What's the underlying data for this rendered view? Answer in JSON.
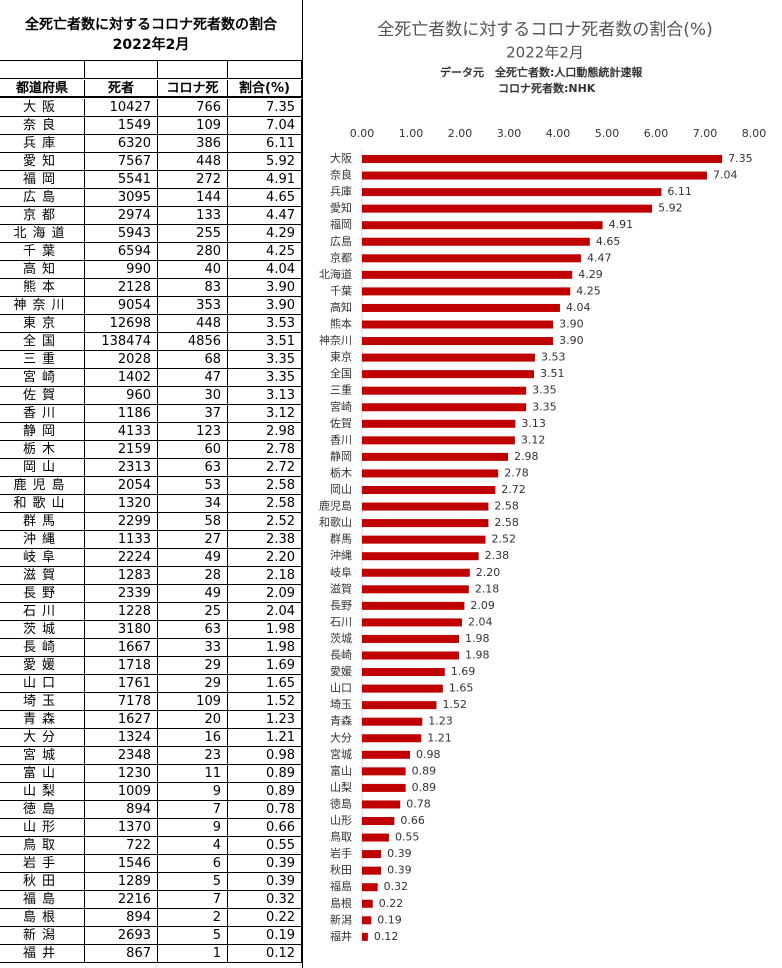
{
  "table": {
    "title": "全死亡者数に対するコロナ死者数の割合",
    "subtitle": "2022年2月",
    "header": [
      "都道府県",
      "死者",
      "コロナ死",
      "割合(%)"
    ],
    "rows": [
      [
        "大阪",
        "10427",
        "766",
        "7.35"
      ],
      [
        "奈良",
        "1549",
        "109",
        "7.04"
      ],
      [
        "兵庫",
        "6320",
        "386",
        "6.11"
      ],
      [
        "愛知",
        "7567",
        "448",
        "5.92"
      ],
      [
        "福岡",
        "5541",
        "272",
        "4.91"
      ],
      [
        "広島",
        "3095",
        "144",
        "4.65"
      ],
      [
        "京都",
        "2974",
        "133",
        "4.47"
      ],
      [
        "北海道",
        "5943",
        "255",
        "4.29"
      ],
      [
        "千葉",
        "6594",
        "280",
        "4.25"
      ],
      [
        "高知",
        "990",
        "40",
        "4.04"
      ],
      [
        "熊本",
        "2128",
        "83",
        "3.90"
      ],
      [
        "神奈川",
        "9054",
        "353",
        "3.90"
      ],
      [
        "東京",
        "12698",
        "448",
        "3.53"
      ],
      [
        "全国",
        "138474",
        "4856",
        "3.51"
      ],
      [
        "三重",
        "2028",
        "68",
        "3.35"
      ],
      [
        "宮崎",
        "1402",
        "47",
        "3.35"
      ],
      [
        "佐賀",
        "960",
        "30",
        "3.13"
      ],
      [
        "香川",
        "1186",
        "37",
        "3.12"
      ],
      [
        "静岡",
        "4133",
        "123",
        "2.98"
      ],
      [
        "栃木",
        "2159",
        "60",
        "2.78"
      ],
      [
        "岡山",
        "2313",
        "63",
        "2.72"
      ],
      [
        "鹿児島",
        "2054",
        "53",
        "2.58"
      ],
      [
        "和歌山",
        "1320",
        "34",
        "2.58"
      ],
      [
        "群馬",
        "2299",
        "58",
        "2.52"
      ],
      [
        "沖縄",
        "1133",
        "27",
        "2.38"
      ],
      [
        "岐阜",
        "2224",
        "49",
        "2.20"
      ],
      [
        "滋賀",
        "1283",
        "28",
        "2.18"
      ],
      [
        "長野",
        "2339",
        "49",
        "2.09"
      ],
      [
        "石川",
        "1228",
        "25",
        "2.04"
      ],
      [
        "茨城",
        "3180",
        "63",
        "1.98"
      ],
      [
        "長崎",
        "1667",
        "33",
        "1.98"
      ],
      [
        "愛媛",
        "1718",
        "29",
        "1.69"
      ],
      [
        "山口",
        "1761",
        "29",
        "1.65"
      ],
      [
        "埼玉",
        "7178",
        "109",
        "1.52"
      ],
      [
        "青森",
        "1627",
        "20",
        "1.23"
      ],
      [
        "大分",
        "1324",
        "16",
        "1.21"
      ],
      [
        "宮城",
        "2348",
        "23",
        "0.98"
      ],
      [
        "富山",
        "1230",
        "11",
        "0.89"
      ],
      [
        "山梨",
        "1009",
        "9",
        "0.89"
      ],
      [
        "徳島",
        "894",
        "7",
        "0.78"
      ],
      [
        "山形",
        "1370",
        "9",
        "0.66"
      ],
      [
        "鳥取",
        "722",
        "4",
        "0.55"
      ],
      [
        "岩手",
        "1546",
        "6",
        "0.39"
      ],
      [
        "秋田",
        "1289",
        "5",
        "0.39"
      ],
      [
        "福島",
        "2216",
        "7",
        "0.32"
      ],
      [
        "島根",
        "894",
        "2",
        "0.22"
      ],
      [
        "新潟",
        "2693",
        "5",
        "0.19"
      ],
      [
        "福井",
        "867",
        "1",
        "0.12"
      ]
    ]
  },
  "chart_data": {
    "type": "barh",
    "title": "全死亡者数に対するコロナ死者数の割合(%)",
    "subtitle": "2022年2月",
    "source": [
      "データ元　全死亡者数:人口動態統計速報",
      "コロナ死者数:NHK"
    ],
    "categories": [
      "大阪",
      "奈良",
      "兵庫",
      "愛知",
      "福岡",
      "広島",
      "京都",
      "北海道",
      "千葉",
      "高知",
      "熊本",
      "神奈川",
      "東京",
      "全国",
      "三重",
      "宮崎",
      "佐賀",
      "香川",
      "静岡",
      "栃木",
      "岡山",
      "鹿児島",
      "和歌山",
      "群馬",
      "沖縄",
      "岐阜",
      "滋賀",
      "長野",
      "石川",
      "茨城",
      "長崎",
      "愛媛",
      "山口",
      "埼玉",
      "青森",
      "大分",
      "宮城",
      "富山",
      "山梨",
      "徳島",
      "山形",
      "鳥取",
      "岩手",
      "秋田",
      "福島",
      "島根",
      "新潟",
      "福井"
    ],
    "values": [
      7.35,
      7.04,
      6.11,
      5.92,
      4.91,
      4.65,
      4.47,
      4.29,
      4.25,
      4.04,
      3.9,
      3.9,
      3.53,
      3.51,
      3.35,
      3.35,
      3.13,
      3.12,
      2.98,
      2.78,
      2.72,
      2.58,
      2.58,
      2.52,
      2.38,
      2.2,
      2.18,
      2.09,
      2.04,
      1.98,
      1.98,
      1.69,
      1.65,
      1.52,
      1.23,
      1.21,
      0.98,
      0.89,
      0.89,
      0.78,
      0.66,
      0.55,
      0.39,
      0.39,
      0.32,
      0.22,
      0.19,
      0.12
    ],
    "value_labels": [
      "7.35",
      "7.04",
      "6.11",
      "5.92",
      "4.91",
      "4.65",
      "4.47",
      "4.29",
      "4.25",
      "4.04",
      "3.90",
      "3.90",
      "3.53",
      "3.51",
      "3.35",
      "3.35",
      "3.13",
      "3.12",
      "2.98",
      "2.78",
      "2.72",
      "2.58",
      "2.58",
      "2.52",
      "2.38",
      "2.20",
      "2.18",
      "2.09",
      "2.04",
      "1.98",
      "1.98",
      "1.69",
      "1.65",
      "1.52",
      "1.23",
      "1.21",
      "0.98",
      "0.89",
      "0.89",
      "0.78",
      "0.66",
      "0.55",
      "0.39",
      "0.39",
      "0.32",
      "0.22",
      "0.19",
      "0.12"
    ],
    "color": "#c00000",
    "xlim": [
      0,
      8
    ],
    "xticks": [
      {
        "value": 0,
        "label": "0.00"
      },
      {
        "value": 1,
        "label": "1.00"
      },
      {
        "value": 2,
        "label": "2.00"
      },
      {
        "value": 3,
        "label": "3.00"
      },
      {
        "value": 4,
        "label": "4.00"
      },
      {
        "value": 5,
        "label": "5.00"
      },
      {
        "value": 6,
        "label": "6.00"
      },
      {
        "value": 7,
        "label": "7.00"
      },
      {
        "value": 8,
        "label": "8.00"
      }
    ]
  }
}
